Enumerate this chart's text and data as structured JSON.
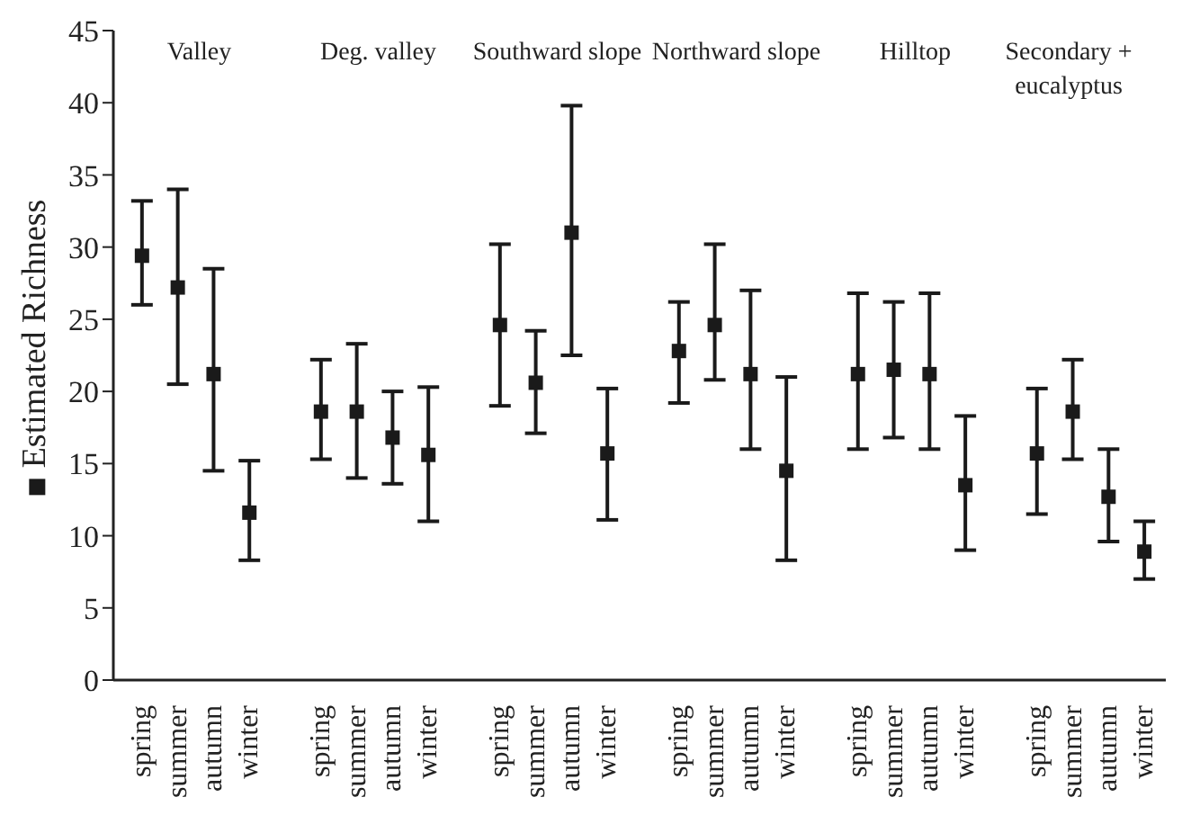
{
  "chart_data": {
    "type": "scatter",
    "ylabel": "Estimated Richness",
    "categories": [
      "spring",
      "summer",
      "autumn",
      "winter",
      null,
      "spring",
      "summer",
      "autumn",
      "winter",
      null,
      "spring",
      "summer",
      "autumn",
      "winter",
      null,
      "spring",
      "summer",
      "autumn",
      "winter",
      null,
      "spring",
      "summer",
      "autumn",
      "winter",
      null,
      "spring",
      "summer",
      "autumn",
      "winter"
    ],
    "series": [
      {
        "color": "#1a1a1a",
        "values": [
          29.4,
          27.2,
          21.2,
          11.6,
          null,
          18.6,
          18.6,
          16.8,
          15.6,
          null,
          24.6,
          20.6,
          31,
          15.7,
          null,
          22.8,
          24.6,
          21.2,
          14.5,
          null,
          21.2,
          21.5,
          21.2,
          13.5,
          null,
          15.7,
          18.6,
          12.7,
          8.9
        ],
        "errors": [
          [
            26,
            33.2
          ],
          [
            20.5,
            34
          ],
          [
            14.5,
            28.5
          ],
          [
            8.3,
            15.2
          ],
          null,
          [
            15.3,
            22.2
          ],
          [
            14,
            23.3
          ],
          [
            13.6,
            20
          ],
          [
            11,
            20.3
          ],
          null,
          [
            19,
            30.2
          ],
          [
            17.1,
            24.2
          ],
          [
            22.5,
            39.8
          ],
          [
            11.1,
            20.2
          ],
          null,
          [
            19.2,
            26.2
          ],
          [
            20.8,
            30.2
          ],
          [
            16,
            27
          ],
          [
            8.3,
            21
          ],
          null,
          [
            16,
            26.8
          ],
          [
            16.8,
            26.2
          ],
          [
            16,
            26.8
          ],
          [
            9,
            18.3
          ],
          null,
          [
            11.5,
            20.2
          ],
          [
            15.3,
            22.2
          ],
          [
            9.6,
            16
          ],
          [
            7,
            11
          ]
        ]
      }
    ],
    "annotations": [
      "Valley",
      "Deg. valley",
      "Southward slope",
      "Northward slope",
      "Hilltop",
      "Secondary + eucalyptus"
    ],
    "ylim": [
      0,
      45
    ],
    "yticks": [
      0,
      5,
      10,
      15,
      20,
      25,
      30,
      35,
      40,
      45
    ],
    "grid": false,
    "marker": "square"
  }
}
